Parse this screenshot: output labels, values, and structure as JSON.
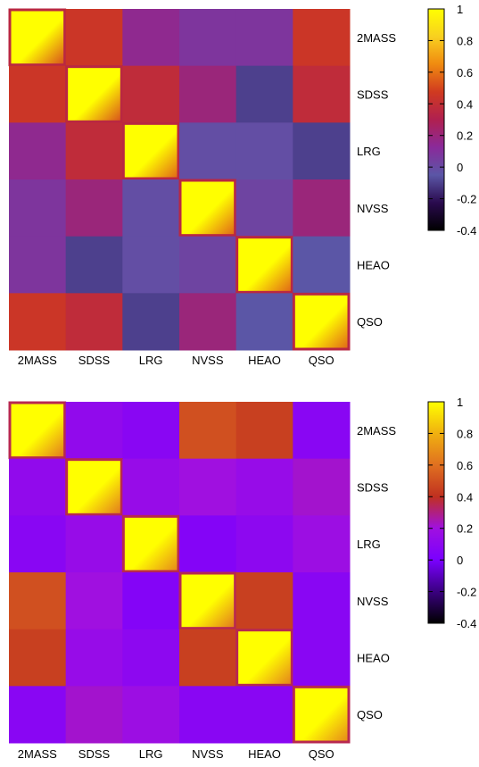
{
  "chart_data": [
    {
      "type": "heatmap",
      "categories": [
        "2MASS",
        "SDSS",
        "LRG",
        "NVSS",
        "HEAO",
        "QSO"
      ],
      "row_labels": [
        "2MASS",
        "SDSS",
        "LRG",
        "NVSS",
        "HEAO",
        "QSO"
      ],
      "block_values": [
        [
          0.75,
          0.45,
          0.15,
          0.08,
          0.08,
          0.45
        ],
        [
          0.45,
          0.75,
          0.38,
          0.2,
          -0.1,
          0.38
        ],
        [
          0.15,
          0.38,
          0.8,
          -0.02,
          -0.02,
          -0.1
        ],
        [
          0.08,
          0.2,
          -0.02,
          0.8,
          0.02,
          0.2
        ],
        [
          0.08,
          -0.1,
          -0.02,
          0.02,
          0.8,
          -0.05
        ],
        [
          0.45,
          0.38,
          -0.1,
          0.2,
          -0.05,
          0.8
        ]
      ],
      "diagonal_peak": 1,
      "colorbar": {
        "min": -0.4,
        "max": 1,
        "ticks": [
          "1",
          "0.8",
          "0.6",
          "0.4",
          "0.2",
          "0",
          "-0.2",
          "-0.4"
        ]
      },
      "colormap": [
        "#000000",
        "#2a0a4e",
        "#5b56a6",
        "#8a2a9a",
        "#b02050",
        "#d03a20",
        "#f08a10",
        "#f8d020",
        "#ffff00"
      ]
    },
    {
      "type": "heatmap",
      "categories": [
        "2MASS",
        "SDSS",
        "LRG",
        "NVSS",
        "HEAO",
        "QSO"
      ],
      "row_labels": [
        "2MASS",
        "SDSS",
        "LRG",
        "NVSS",
        "HEAO",
        "QSO"
      ],
      "block_values": [
        [
          0.85,
          0.12,
          0.08,
          0.5,
          0.45,
          0.08
        ],
        [
          0.12,
          0.85,
          0.15,
          0.2,
          0.15,
          0.22
        ],
        [
          0.08,
          0.15,
          0.9,
          0.05,
          0.1,
          0.18
        ],
        [
          0.5,
          0.2,
          0.05,
          0.85,
          0.45,
          0.08
        ],
        [
          0.45,
          0.15,
          0.1,
          0.45,
          0.88,
          0.08
        ],
        [
          0.08,
          0.22,
          0.18,
          0.08,
          0.08,
          0.9
        ]
      ],
      "diagonal_peak": 1,
      "colorbar": {
        "min": -0.4,
        "max": 1,
        "ticks": [
          "1",
          "0.8",
          "0.6",
          "0.4",
          "0.2",
          "0",
          "-0.2",
          "-0.4"
        ]
      },
      "colormap": [
        "#000000",
        "#3a0080",
        "#7a00ff",
        "#a010e0",
        "#c03020",
        "#e07020",
        "#f0b010",
        "#ffff00"
      ]
    }
  ]
}
